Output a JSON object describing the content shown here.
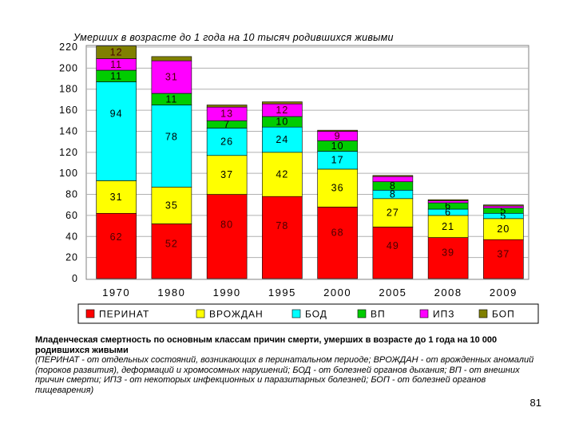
{
  "chart_data": {
    "type": "stacked-bar",
    "title": "Умерших в возрасте до 1 года на 10 тысяч родившихся живыми",
    "categories": [
      "1970",
      "1980",
      "1990",
      "1995",
      "2000",
      "2005",
      "2008",
      "2009"
    ],
    "ylim": [
      0,
      220
    ],
    "yticks": [
      0,
      20,
      40,
      60,
      80,
      100,
      120,
      140,
      160,
      180,
      200,
      220
    ],
    "grid": true,
    "legend_position": "bottom",
    "series": [
      {
        "name": "ПЕРИНАТ",
        "color": "#ff0000",
        "values": [
          62,
          52,
          80,
          78,
          68,
          49,
          39,
          37
        ]
      },
      {
        "name": "ВРОЖДАН",
        "color": "#ffff00",
        "values": [
          31,
          35,
          37,
          42,
          36,
          27,
          21,
          20
        ]
      },
      {
        "name": "БОД",
        "color": "#00ffff",
        "values": [
          94,
          78,
          26,
          24,
          17,
          8,
          6,
          5
        ]
      },
      {
        "name": "ВП",
        "color": "#00cc00",
        "values": [
          11,
          11,
          7,
          10,
          10,
          8,
          6,
          5
        ]
      },
      {
        "name": "ИПЗ",
        "color": "#ff00ff",
        "values": [
          11,
          31,
          13,
          12,
          9,
          5,
          2,
          2
        ]
      },
      {
        "name": "БОП",
        "color": "#808000",
        "values": [
          12,
          4,
          2,
          2,
          1,
          1,
          1,
          1
        ]
      }
    ],
    "labels": [
      [
        "62",
        "31",
        "94",
        "11",
        "11",
        "12"
      ],
      [
        "52",
        "35",
        "78",
        "11",
        "31",
        null
      ],
      [
        "80",
        "37",
        "26",
        "7",
        "13",
        null
      ],
      [
        "78",
        "42",
        "24",
        "10",
        "12",
        null
      ],
      [
        "68",
        "36",
        "17",
        "10",
        "9",
        null
      ],
      [
        "49",
        "27",
        "8",
        "8",
        null,
        null
      ],
      [
        "39",
        "21",
        "6",
        "6",
        null,
        null
      ],
      [
        "37",
        "20",
        "5",
        "5",
        null,
        null
      ]
    ]
  },
  "caption": {
    "title": "Младенческая смертность по основным классам причин смерти, умерших в возрасте до 1 года на 10 000 родившихся живыми",
    "description": "(ПЕРИНАТ - от отдельных состояний, возникающих в перинатальном периоде; ВРОЖДАН - от врожденных аномалий (пороков развития), деформаций и хромосомных нарушений; БОД - от болезней органов дыхания; ВП - от внешних причин смерти; ИПЗ - от некоторых инфекционных и паразитарных болезней; БОП - от болезней органов пищеварения)"
  },
  "page_number": "81"
}
